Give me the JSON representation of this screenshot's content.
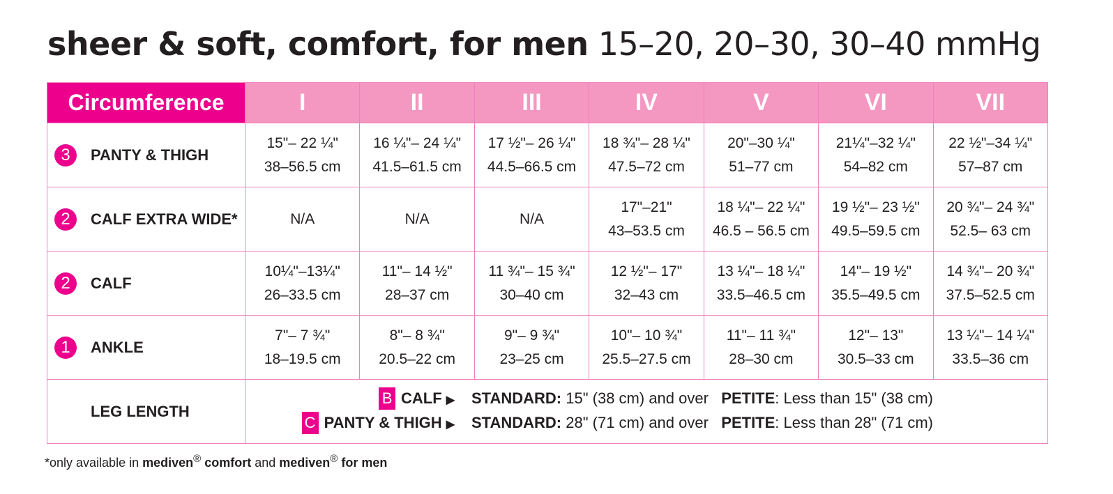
{
  "title": {
    "bold": "sheer & soft, comfort, for men",
    "light": "15–20, 20–30, 30–40 mmHg"
  },
  "colors": {
    "magenta": "#ec008c",
    "pink": "#f497c1",
    "border": "#f07fbf"
  },
  "header": {
    "first": "Circumference",
    "sizes": [
      "I",
      "II",
      "III",
      "IV",
      "V",
      "VI",
      "VII"
    ]
  },
  "rows": [
    {
      "num": "3",
      "label": "PANTY & THIGH",
      "cells": [
        [
          "15\"– 22 ¼\"",
          "38–56.5 cm"
        ],
        [
          "16 ¼\"– 24 ¼\"",
          "41.5–61.5 cm"
        ],
        [
          "17 ½\"– 26 ¼\"",
          "44.5–66.5 cm"
        ],
        [
          "18 ¾\"– 28 ¼\"",
          "47.5–72 cm"
        ],
        [
          "20\"–30 ¼\"",
          "51–77 cm"
        ],
        [
          "21¼\"–32 ¼\"",
          "54–82 cm"
        ],
        [
          "22 ½\"–34 ¼\"",
          "57–87 cm"
        ]
      ]
    },
    {
      "num": "2",
      "label": "CALF EXTRA WIDE*",
      "cells": [
        [
          "N/A",
          ""
        ],
        [
          "N/A",
          ""
        ],
        [
          "N/A",
          ""
        ],
        [
          "17\"–21\"",
          "43–53.5 cm"
        ],
        [
          "18 ¼\"– 22 ¼\"",
          "46.5 – 56.5 cm"
        ],
        [
          "19 ½\"– 23 ½\"",
          "49.5–59.5 cm"
        ],
        [
          "20 ¾\"– 24 ¾\"",
          "52.5– 63 cm"
        ]
      ]
    },
    {
      "num": "2",
      "label": "CALF",
      "cells": [
        [
          "10¼\"–13¼\"",
          "26–33.5 cm"
        ],
        [
          "11\"– 14 ½\"",
          "28–37 cm"
        ],
        [
          "11 ¾\"– 15 ¾\"",
          "30–40 cm"
        ],
        [
          "12 ½\"– 17\"",
          "32–43 cm"
        ],
        [
          "13 ¼\"– 18 ¼\"",
          "33.5–46.5 cm"
        ],
        [
          "14\"– 19 ½\"",
          "35.5–49.5 cm"
        ],
        [
          "14 ¾\"– 20 ¾\"",
          "37.5–52.5 cm"
        ]
      ]
    },
    {
      "num": "1",
      "label": "ANKLE",
      "cells": [
        [
          "7\"– 7 ¾\"",
          "18–19.5 cm"
        ],
        [
          "8\"– 8 ¾\"",
          "20.5–22 cm"
        ],
        [
          "9\"– 9 ¾\"",
          "23–25 cm"
        ],
        [
          "10\"– 10 ¾\"",
          "25.5–27.5 cm"
        ],
        [
          "11\"– 11 ¾\"",
          "28–30 cm"
        ],
        [
          "12\"– 13\"",
          "30.5–33 cm"
        ],
        [
          "13 ¼\"– 14 ¼\"",
          "33.5–36 cm"
        ]
      ]
    }
  ],
  "leg_length": {
    "label": "LEG LENGTH",
    "lines": [
      {
        "tag": "B",
        "name": "CALF",
        "std_label": "STANDARD:",
        "std": " 15\" (38 cm) and over",
        "pet_label": "PETITE",
        "pet": ": Less than 15\" (38 cm)"
      },
      {
        "tag": "C",
        "name": "PANTY & THIGH",
        "std_label": "STANDARD:",
        "std": " 28\" (71 cm) and over",
        "pet_label": "PETITE",
        "pet": ": Less than 28\" (71 cm)"
      }
    ]
  },
  "footnote": {
    "pre": "*only available in ",
    "b1": "mediven",
    "m1": " comfort",
    "mid": " and ",
    "b2": "mediven",
    "m2": " for men",
    "reg": "®"
  }
}
